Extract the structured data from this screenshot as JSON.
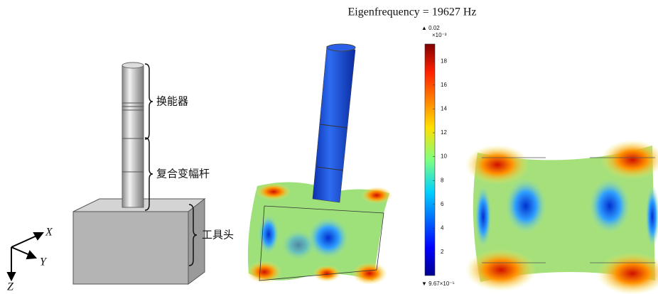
{
  "figure": {
    "title": "Eigenfrequency = 19627 Hz",
    "model_labels": {
      "transducer": "换能器",
      "horn": "复合变幅杆",
      "tool_head": "工具头"
    },
    "axes_labels": {
      "x": "X",
      "y": "Y",
      "z": "Z"
    },
    "colorbar": {
      "max_label": "▲ 0.02",
      "scale_label": "×10⁻³",
      "min_label": "▼ 9.67×10⁻⁵",
      "ticks": [
        2,
        4,
        6,
        8,
        10,
        12,
        14,
        16,
        18
      ]
    }
  }
}
